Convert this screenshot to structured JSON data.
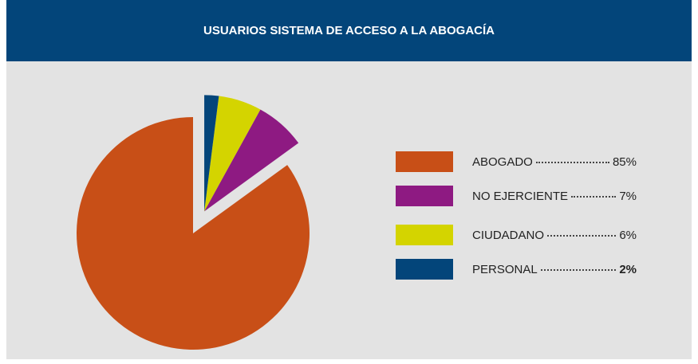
{
  "chart_data": {
    "type": "pie",
    "title": "USUARIOS SISTEMA DE ACCESO A LA ABOGACÍA",
    "categories": [
      "ABOGADO",
      "NO EJERCIENTE",
      "CIUDADANO",
      "PERSONAL"
    ],
    "values": [
      85,
      7,
      6,
      2
    ],
    "value_labels": [
      "85%",
      "7%",
      "6%",
      "2%"
    ],
    "colors": [
      "#c84f17",
      "#8e1a82",
      "#d4d400",
      "#03457a"
    ]
  }
}
